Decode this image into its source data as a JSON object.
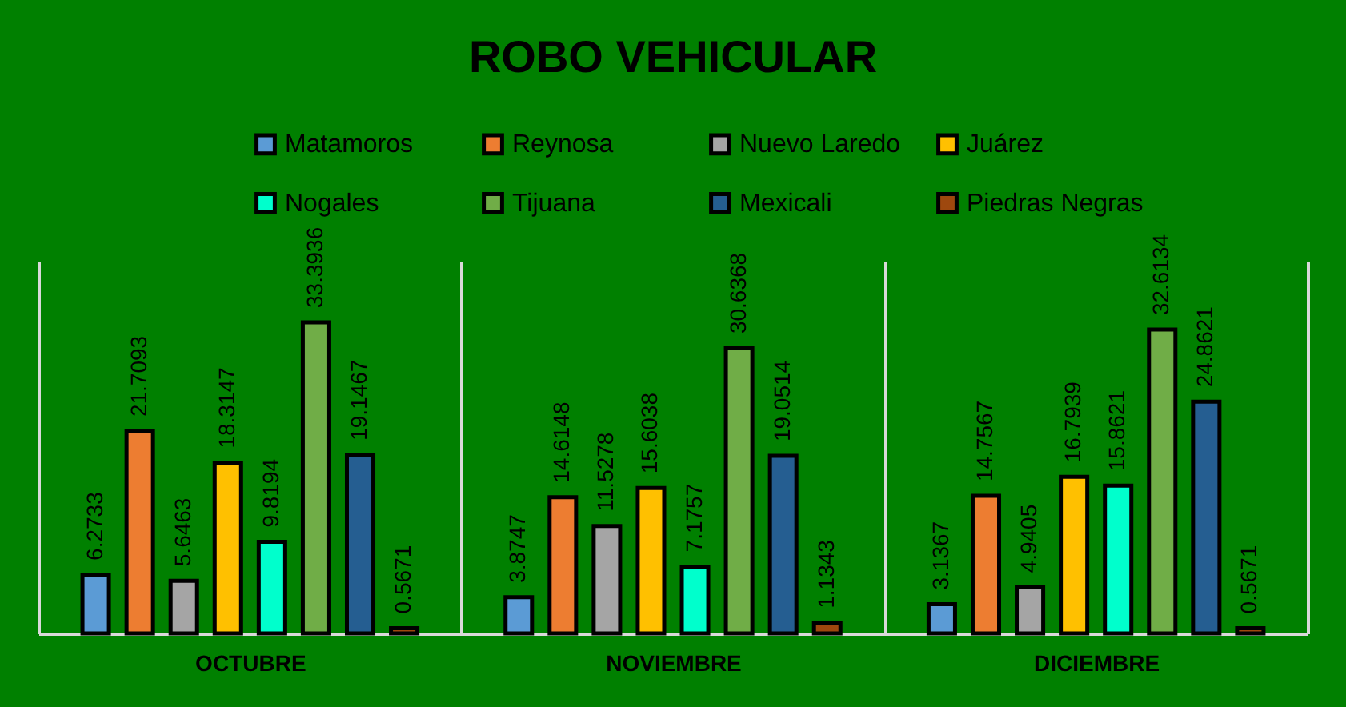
{
  "chart_data": {
    "type": "bar",
    "title": "ROBO VEHICULAR",
    "categories": [
      "OCTUBRE",
      "NOVIEMBRE",
      "DICIEMBRE"
    ],
    "series": [
      {
        "name": "Matamoros",
        "color": "#5b9bd5",
        "values": [
          6.2733,
          3.8747,
          3.1367
        ]
      },
      {
        "name": "Reynosa",
        "color": "#ed7d31",
        "values": [
          21.7093,
          14.6148,
          14.7567
        ]
      },
      {
        "name": "Nuevo Laredo",
        "color": "#a5a5a5",
        "values": [
          5.6463,
          11.5278,
          4.9405
        ]
      },
      {
        "name": "Juárez",
        "color": "#ffc000",
        "values": [
          18.3147,
          15.6038,
          16.7939
        ]
      },
      {
        "name": "Nogales",
        "color": "#00ffcc",
        "values": [
          9.8194,
          7.1757,
          15.8621
        ]
      },
      {
        "name": "Tijuana",
        "color": "#70ad47",
        "values": [
          33.3936,
          30.6368,
          32.6134
        ]
      },
      {
        "name": "Mexicali",
        "color": "#255e91",
        "values": [
          19.1467,
          19.0514,
          24.8621
        ]
      },
      {
        "name": "Piedras Negras",
        "color": "#9e480e",
        "values": [
          0.5671,
          1.1343,
          0.5671
        ]
      }
    ],
    "ylim": [
      0,
      40
    ],
    "data_labels": true,
    "legend": "top",
    "grid": "x",
    "tick_labels": "x"
  }
}
